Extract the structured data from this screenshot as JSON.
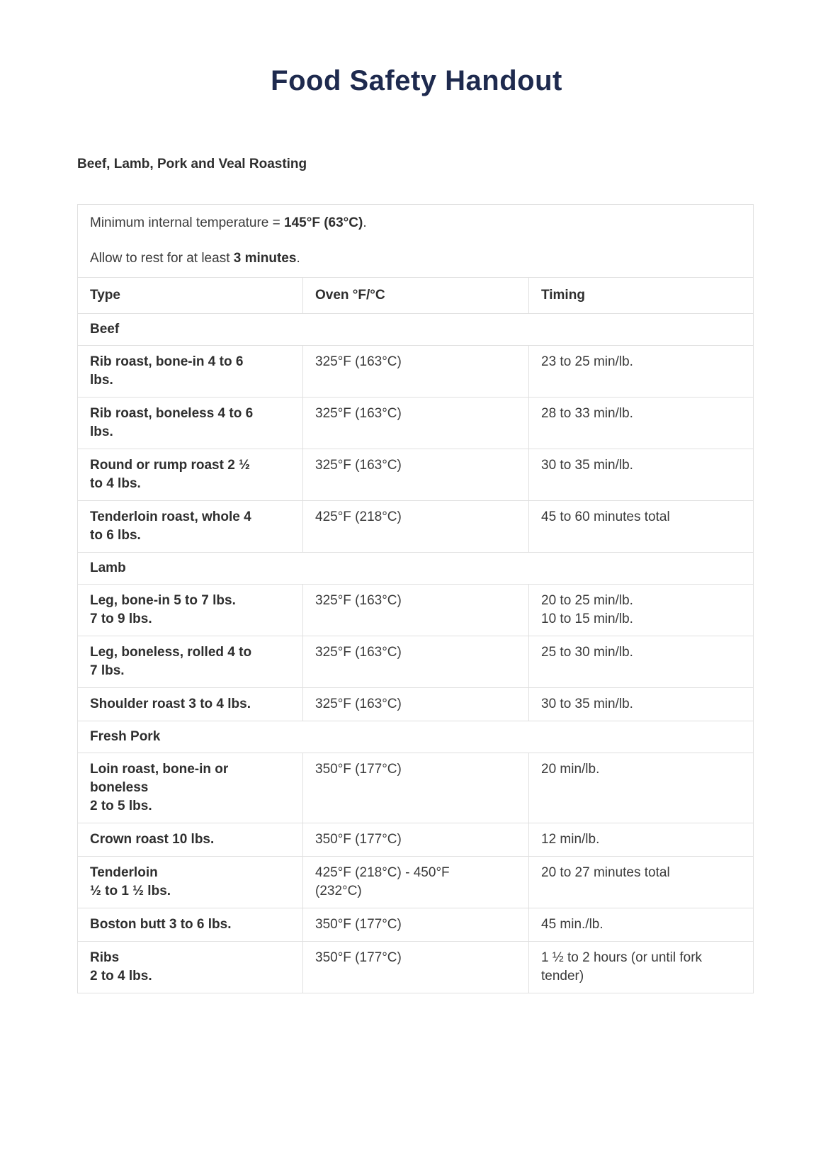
{
  "page": {
    "title": "Food Safety Handout",
    "section_heading": "Beef, Lamb, Pork and Veal Roasting"
  },
  "intro": {
    "line1_prefix": "Minimum internal temperature = ",
    "line1_bold": "145°F (63°C)",
    "line1_suffix": ".",
    "line2_prefix": "Allow to rest for at least ",
    "line2_bold": "3 minutes",
    "line2_suffix": "."
  },
  "table": {
    "headers": [
      "Type",
      "Oven °F/°C",
      "Timing"
    ],
    "sections": [
      {
        "label": "Beef",
        "rows": [
          {
            "type": "Rib roast, bone-in 4 to 6\nlbs.",
            "oven": "325°F (163°C)",
            "timing": "23 to 25 min/lb."
          },
          {
            "type": "Rib roast, boneless 4 to 6\nlbs.",
            "oven": "325°F (163°C)",
            "timing": "28 to 33 min/lb."
          },
          {
            "type": "Round or rump roast 2 ½\nto 4 lbs.",
            "oven": "325°F (163°C)",
            "timing": "30 to 35 min/lb."
          },
          {
            "type": "Tenderloin roast, whole 4\nto 6 lbs.",
            "oven": "425°F (218°C)",
            "timing": "45 to 60 minutes total"
          }
        ]
      },
      {
        "label": "Lamb",
        "rows": [
          {
            "type": "Leg, bone-in 5 to 7 lbs.\n7 to 9 lbs.",
            "oven": "325°F (163°C)",
            "timing": "20 to 25 min/lb.\n10 to 15 min/lb."
          },
          {
            "type": "Leg, boneless, rolled 4 to\n7 lbs.",
            "oven": "325°F (163°C)",
            "timing": "25 to 30 min/lb."
          },
          {
            "type": "Shoulder roast 3 to 4 lbs.",
            "oven": "325°F (163°C)",
            "timing": "30 to 35 min/lb."
          }
        ]
      },
      {
        "label": "Fresh Pork",
        "rows": [
          {
            "type": "Loin roast, bone-in or\nboneless\n2 to 5 lbs.",
            "oven": "350°F (177°C)",
            "timing": "20 min/lb."
          },
          {
            "type": "Crown roast 10 lbs.",
            "oven": "350°F (177°C)",
            "timing": "12 min/lb."
          },
          {
            "type": "Tenderloin\n½ to 1 ½ lbs.",
            "oven": "425°F (218°C) - 450°F\n(232°C)",
            "timing": "20 to 27 minutes total"
          },
          {
            "type": "Boston butt 3 to 6 lbs.",
            "oven": "350°F (177°C)",
            "timing": "45 min./lb."
          },
          {
            "type": "Ribs\n2 to 4 lbs.",
            "oven": "350°F (177°C)",
            "timing": "1 ½ to 2 hours (or until fork\ntender)"
          }
        ]
      }
    ]
  },
  "colors": {
    "title": "#1e2a4e",
    "text": "#3a3a3a",
    "bold_text": "#2e2e2e",
    "border": "#e0e0e0",
    "background": "#ffffff"
  }
}
